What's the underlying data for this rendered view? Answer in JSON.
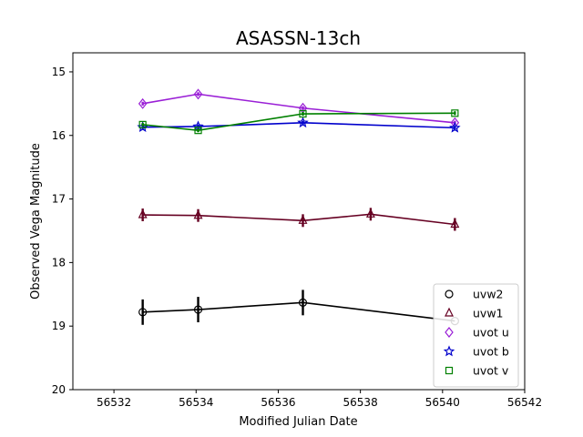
{
  "chart_data": {
    "type": "scatter",
    "title": "ASASSN-13ch",
    "xlabel": "Modified Julian Date",
    "ylabel": "Observed Vega Magnitude",
    "xlim": [
      56531,
      56542
    ],
    "ylim": [
      20,
      14.7
    ],
    "y_inverted": true,
    "grid": false,
    "legend_position": "lower-right",
    "x_ticks": [
      {
        "value": 56532,
        "label": "56532"
      },
      {
        "value": 56534,
        "label": "56534"
      },
      {
        "value": 56536,
        "label": "56536"
      },
      {
        "value": 56538,
        "label": "56538"
      },
      {
        "value": 56540,
        "label": "56540"
      },
      {
        "value": 56542,
        "label": "56542"
      }
    ],
    "y_ticks": [
      {
        "value": 15,
        "label": "15"
      },
      {
        "value": 16,
        "label": "16"
      },
      {
        "value": 17,
        "label": "17"
      },
      {
        "value": 18,
        "label": "18"
      },
      {
        "value": 19,
        "label": "19"
      },
      {
        "value": 20,
        "label": "20"
      }
    ],
    "series": [
      {
        "name": "uvw2",
        "color": "#000000",
        "marker": "circle",
        "x": [
          56532.7,
          56534.05,
          56536.6,
          56540.3
        ],
        "y": [
          18.78,
          18.74,
          18.63,
          18.92
        ],
        "err": [
          0.2,
          0.2,
          0.2,
          0.0
        ]
      },
      {
        "name": "uvw1",
        "color": "#660022",
        "marker": "triangle",
        "x": [
          56532.7,
          56534.05,
          56536.6,
          56538.25,
          56540.3
        ],
        "y": [
          17.25,
          17.26,
          17.34,
          17.24,
          17.4
        ],
        "err": [
          0.1,
          0.1,
          0.1,
          0.1,
          0.1
        ]
      },
      {
        "name": "uvot u",
        "color": "#9a1fd6",
        "marker": "diamond",
        "x": [
          56532.7,
          56534.05,
          56536.6,
          56540.3
        ],
        "y": [
          15.5,
          15.35,
          15.57,
          15.8
        ],
        "err": [
          0.03,
          0.03,
          0.03,
          0.03
        ]
      },
      {
        "name": "uvot b",
        "color": "#0000cc",
        "marker": "star",
        "x": [
          56532.7,
          56534.05,
          56536.6,
          56540.3
        ],
        "y": [
          15.87,
          15.86,
          15.8,
          15.88
        ],
        "err": [
          0.03,
          0.03,
          0.03,
          0.03
        ]
      },
      {
        "name": "uvot v",
        "color": "#008000",
        "marker": "square",
        "x": [
          56532.7,
          56534.05,
          56536.6,
          56540.3
        ],
        "y": [
          15.83,
          15.92,
          15.66,
          15.65
        ],
        "err": [
          0.03,
          0.03,
          0.03,
          0.03
        ]
      }
    ]
  }
}
